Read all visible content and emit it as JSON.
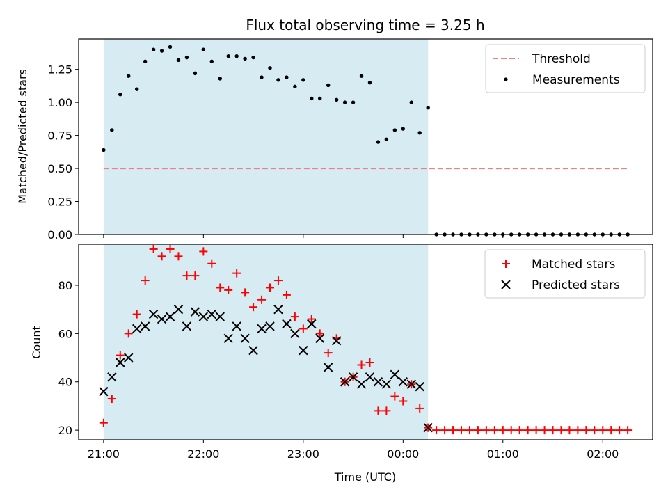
{
  "figure": {
    "title": "Flux total observing time = 3.25 h",
    "xlabel": "Time (UTC)"
  },
  "chart_data": [
    {
      "type": "scatter",
      "panel": "top",
      "ylabel": "Matched/Predicted stars",
      "xlim": [
        "20:45",
        "02:30"
      ],
      "ylim": [
        0,
        1.48
      ],
      "yticks": [
        "0.00",
        "0.25",
        "0.50",
        "0.75",
        "1.00",
        "1.25"
      ],
      "shaded_region": {
        "x_start": "21:00",
        "x_end": "00:15",
        "color": "#add8e6"
      },
      "threshold": {
        "name": "Threshold",
        "value": 0.5,
        "x_start": "21:00",
        "x_end": "02:15",
        "color": "#f08080",
        "style": "dashed"
      },
      "legend_position": "top-right",
      "series": [
        {
          "name": "Measurements",
          "color": "#000000",
          "marker": "dot",
          "x": [
            "21:00",
            "21:05",
            "21:10",
            "21:15",
            "21:20",
            "21:25",
            "21:30",
            "21:35",
            "21:40",
            "21:45",
            "21:50",
            "21:55",
            "22:00",
            "22:05",
            "22:10",
            "22:15",
            "22:20",
            "22:25",
            "22:30",
            "22:35",
            "22:40",
            "22:45",
            "22:50",
            "22:55",
            "23:00",
            "23:05",
            "23:10",
            "23:15",
            "23:20",
            "23:25",
            "23:30",
            "23:35",
            "23:40",
            "23:45",
            "23:50",
            "23:55",
            "00:00",
            "00:05",
            "00:10",
            "00:15",
            "00:20",
            "00:25",
            "00:30",
            "00:35",
            "00:40",
            "00:45",
            "00:50",
            "00:55",
            "01:00",
            "01:05",
            "01:10",
            "01:15",
            "01:20",
            "01:25",
            "01:30",
            "01:35",
            "01:40",
            "01:45",
            "01:50",
            "01:55",
            "02:00",
            "02:05",
            "02:10",
            "02:15"
          ],
          "y": [
            0.64,
            0.79,
            1.06,
            1.2,
            1.1,
            1.31,
            1.4,
            1.39,
            1.42,
            1.32,
            1.34,
            1.22,
            1.4,
            1.31,
            1.18,
            1.35,
            1.35,
            1.33,
            1.34,
            1.19,
            1.26,
            1.17,
            1.19,
            1.12,
            1.17,
            1.03,
            1.03,
            1.13,
            1.02,
            1.0,
            1.0,
            1.2,
            1.15,
            0.7,
            0.72,
            0.79,
            0.8,
            1.0,
            0.77,
            0.96,
            0,
            0,
            0,
            0,
            0,
            0,
            0,
            0,
            0,
            0,
            0,
            0,
            0,
            0,
            0,
            0,
            0,
            0,
            0,
            0,
            0,
            0,
            0,
            0
          ]
        }
      ]
    },
    {
      "type": "scatter",
      "panel": "bottom",
      "ylabel": "Count",
      "xlim": [
        "20:45",
        "02:30"
      ],
      "ylim": [
        16,
        97
      ],
      "yticks": [
        "20",
        "40",
        "60",
        "80"
      ],
      "xticks": [
        "21:00",
        "22:00",
        "23:00",
        "00:00",
        "01:00",
        "02:00"
      ],
      "shaded_region": {
        "x_start": "21:00",
        "x_end": "00:15",
        "color": "#add8e6"
      },
      "legend_position": "top-right",
      "series": [
        {
          "name": "Matched stars",
          "color": "#ff0000",
          "marker": "plus",
          "x": [
            "21:00",
            "21:05",
            "21:10",
            "21:15",
            "21:20",
            "21:25",
            "21:30",
            "21:35",
            "21:40",
            "21:45",
            "21:50",
            "21:55",
            "22:00",
            "22:05",
            "22:10",
            "22:15",
            "22:20",
            "22:25",
            "22:30",
            "22:35",
            "22:40",
            "22:45",
            "22:50",
            "22:55",
            "23:00",
            "23:05",
            "23:10",
            "23:15",
            "23:20",
            "23:25",
            "23:30",
            "23:35",
            "23:40",
            "23:45",
            "23:50",
            "23:55",
            "00:00",
            "00:05",
            "00:10",
            "00:15",
            "00:20",
            "00:25",
            "00:30",
            "00:35",
            "00:40",
            "00:45",
            "00:50",
            "00:55",
            "01:00",
            "01:05",
            "01:10",
            "01:15",
            "01:20",
            "01:25",
            "01:30",
            "01:35",
            "01:40",
            "01:45",
            "01:50",
            "01:55",
            "02:00",
            "02:05",
            "02:10",
            "02:15"
          ],
          "y": [
            23,
            33,
            51,
            60,
            68,
            82,
            95,
            92,
            95,
            92,
            84,
            84,
            94,
            89,
            79,
            78,
            85,
            77,
            71,
            74,
            79,
            82,
            76,
            67,
            62,
            66,
            60,
            52,
            58,
            40,
            42,
            47,
            48,
            28,
            28,
            34,
            32,
            39,
            29,
            21,
            20,
            20,
            20,
            20,
            20,
            20,
            20,
            20,
            20,
            20,
            20,
            20,
            20,
            20,
            20,
            20,
            20,
            20,
            20,
            20,
            20,
            20,
            20,
            20
          ]
        },
        {
          "name": "Predicted stars",
          "color": "#000000",
          "marker": "x",
          "x": [
            "21:00",
            "21:05",
            "21:10",
            "21:15",
            "21:20",
            "21:25",
            "21:30",
            "21:35",
            "21:40",
            "21:45",
            "21:50",
            "21:55",
            "22:00",
            "22:05",
            "22:10",
            "22:15",
            "22:20",
            "22:25",
            "22:30",
            "22:35",
            "22:40",
            "22:45",
            "22:50",
            "22:55",
            "23:00",
            "23:05",
            "23:10",
            "23:15",
            "23:20",
            "23:25",
            "23:30",
            "23:35",
            "23:40",
            "23:45",
            "23:50",
            "23:55",
            "00:00",
            "00:05",
            "00:10",
            "00:15"
          ],
          "y": [
            36,
            42,
            48,
            50,
            62,
            63,
            68,
            66,
            67,
            70,
            63,
            69,
            67,
            68,
            67,
            58,
            63,
            58,
            53,
            62,
            63,
            70,
            64,
            60,
            53,
            64,
            58,
            46,
            57,
            40,
            42,
            39,
            42,
            40,
            39,
            43,
            40,
            39,
            38,
            21
          ]
        }
      ]
    }
  ]
}
